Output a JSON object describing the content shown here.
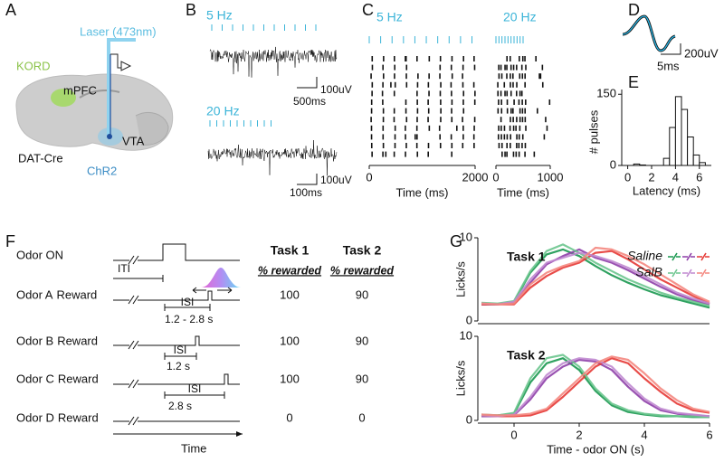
{
  "panel_labels": [
    "A",
    "B",
    "C",
    "D",
    "E",
    "F",
    "G"
  ],
  "panel_a": {
    "laser": "Laser (473nm)",
    "kord": "KORD",
    "mpfc": "mPFC",
    "vta": "VTA",
    "mouse_line": "DAT-Cre",
    "opsin": "ChR2"
  },
  "panel_b": {
    "top_rate": "5 Hz",
    "top_scale_y": "100uV",
    "top_scale_x": "500ms",
    "bottom_rate": "20 Hz",
    "bottom_scale_y": "100uV",
    "bottom_scale_x": "100ms"
  },
  "panel_d": {
    "scale_y": "200uV",
    "scale_x": "5ms"
  },
  "panel_f": {
    "odor_on": "Odor ON",
    "iti": "ITI",
    "time": "Time",
    "task_headers": [
      "Task 1",
      "Task 2"
    ],
    "sub_headers": [
      "% rewarded",
      "% rewarded"
    ],
    "rows": [
      {
        "odor": "Odor A",
        "reward": "Reward",
        "color": "#9c3fb0",
        "isi_label": "ISI",
        "isi": "1.2 - 2.8 s",
        "task1": 100,
        "task2": 90
      },
      {
        "odor": "Odor B",
        "reward": "Reward",
        "color": "#1a9850",
        "isi_label": "ISI",
        "isi": "1.2 s",
        "task1": 100,
        "task2": 90
      },
      {
        "odor": "Odor C",
        "reward": "Reward",
        "color": "#e8413a",
        "isi_label": "ISI",
        "isi": "2.8 s",
        "task1": 100,
        "task2": 90
      },
      {
        "odor": "Odor D",
        "reward": "Reward",
        "color": "#3bb4d8",
        "task1": 0,
        "task2": 0
      }
    ]
  },
  "chart_data": [
    {
      "type": "raster",
      "title": "5 Hz",
      "x_label": "Time (ms)",
      "xlim": [
        0,
        2000
      ],
      "xticks": [
        0,
        2000
      ],
      "color": "#3bb4d8"
    },
    {
      "type": "raster",
      "title": "20 Hz",
      "x_label": "Time (ms)",
      "xlim": [
        0,
        1000
      ],
      "xticks": [
        0,
        1000
      ],
      "color": "#3bb4d8"
    },
    {
      "type": "histogram",
      "x_label": "Latency (ms)",
      "y_label": "# pulses",
      "bins": [
        0,
        0.5,
        1,
        1.5,
        2,
        2.5,
        3,
        3.5,
        4,
        4.5,
        5,
        5.5,
        6,
        6.5
      ],
      "values": [
        0,
        3,
        1,
        0,
        0,
        0,
        15,
        80,
        145,
        118,
        60,
        22,
        6
      ],
      "xlim": [
        -0.5,
        7
      ],
      "xticks": [
        0,
        2,
        4,
        6
      ],
      "ylim": [
        0,
        160
      ],
      "yticks": [
        0,
        150
      ],
      "color": "#ffffff"
    },
    {
      "type": "line",
      "title": "Task 1",
      "y_label": "Licks/s",
      "x": [
        -1,
        -0.5,
        0,
        0.5,
        1,
        1.5,
        2,
        2.5,
        3,
        3.5,
        4,
        4.5,
        5,
        5.5,
        6
      ],
      "xlim": [
        -1,
        6
      ],
      "ylim": [
        0,
        10
      ],
      "yticks": [
        0,
        10
      ],
      "series": [
        {
          "color": "#1a9850",
          "values": [
            2,
            2,
            2.3,
            5.8,
            8,
            8.6,
            7.8,
            6.6,
            5.5,
            4.6,
            3.8,
            3.1,
            2.6,
            2.1,
            1.6
          ]
        },
        {
          "color": "#8e3fa8",
          "values": [
            2,
            2,
            2.2,
            4.6,
            6.8,
            7.8,
            8.6,
            7.6,
            7,
            6.1,
            5.1,
            4.1,
            3.2,
            2.5,
            2
          ]
        },
        {
          "color": "#e53935",
          "values": [
            2,
            2,
            2,
            4,
            5.4,
            6.4,
            7,
            8.2,
            8.4,
            7.4,
            6.2,
            5,
            4,
            3,
            2.1
          ]
        },
        {
          "color": "#6cc58e",
          "values": [
            2.2,
            2.1,
            2.4,
            6,
            8.4,
            9.2,
            8.2,
            7,
            6,
            5,
            4.2,
            3.4,
            2.8,
            2.3,
            1.8
          ]
        },
        {
          "color": "#c08ad0",
          "values": [
            2.1,
            2,
            2.3,
            5,
            7,
            7.6,
            8.2,
            7.8,
            7.2,
            6.4,
            5.4,
            4.4,
            3.4,
            2.7,
            2.1
          ]
        },
        {
          "color": "#f4877f",
          "values": [
            2.1,
            2,
            2.1,
            4.4,
            5.8,
            6.6,
            7.2,
            8.8,
            8.6,
            7.8,
            6.8,
            5.6,
            4.4,
            3.2,
            2.3
          ]
        }
      ],
      "legend": {
        "corner": "upper right",
        "entries": [
          {
            "text": "Saline",
            "text_color": "#111111",
            "swatch_colors": [
              "#1a9850",
              "#8e3fa8",
              "#e53935"
            ]
          },
          {
            "text": "SalB",
            "text_color": "#e53935",
            "swatch_colors": [
              "#6cc58e",
              "#c08ad0",
              "#f4877f"
            ]
          }
        ]
      }
    },
    {
      "type": "line",
      "title": "Task 2",
      "y_label": "Licks/s",
      "x_label": "Time - odor ON (s)",
      "x": [
        -1,
        -0.5,
        0,
        0.5,
        1,
        1.5,
        2,
        2.5,
        3,
        3.5,
        4,
        4.5,
        5,
        5.5,
        6
      ],
      "xlim": [
        -1,
        6
      ],
      "xticks": [
        0,
        2,
        4,
        6
      ],
      "ylim": [
        0,
        10
      ],
      "yticks": [
        0,
        10
      ],
      "series": [
        {
          "color": "#1a9850",
          "values": [
            0.5,
            0.6,
            0.8,
            4.5,
            6.8,
            7.4,
            6,
            3.5,
            1.8,
            1,
            0.7,
            0.5,
            0.5,
            0.4,
            0.4
          ]
        },
        {
          "color": "#8e3fa8",
          "values": [
            0.5,
            0.5,
            0.6,
            2.5,
            5,
            6.4,
            7.2,
            7,
            6,
            4,
            2.3,
            1.2,
            0.8,
            0.6,
            0.5
          ]
        },
        {
          "color": "#e53935",
          "values": [
            0.6,
            0.5,
            0.5,
            0.6,
            1.2,
            2.8,
            4.6,
            6.4,
            7.4,
            6.8,
            5,
            3.4,
            2,
            1.2,
            0.9
          ]
        },
        {
          "color": "#6cc58e",
          "values": [
            0.7,
            0.6,
            0.9,
            5,
            7.4,
            7.8,
            6.4,
            3.8,
            2,
            1.2,
            0.8,
            0.6,
            0.5,
            0.5,
            0.4
          ]
        },
        {
          "color": "#c08ad0",
          "values": [
            0.6,
            0.5,
            0.7,
            2.8,
            5.4,
            6.8,
            7.4,
            7.2,
            6.4,
            4.4,
            2.6,
            1.4,
            0.9,
            0.7,
            0.5
          ]
        },
        {
          "color": "#f4877f",
          "values": [
            0.7,
            0.6,
            0.6,
            0.8,
            1.4,
            3.2,
            5,
            6.8,
            7.6,
            7.2,
            5.6,
            3.8,
            2.4,
            1.4,
            1
          ]
        }
      ]
    }
  ]
}
